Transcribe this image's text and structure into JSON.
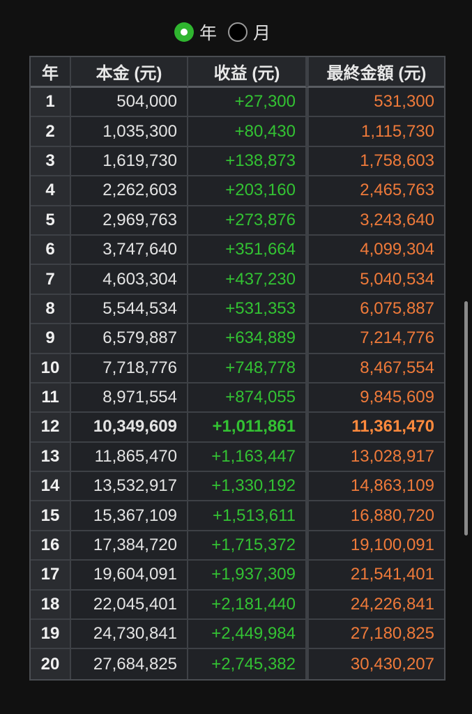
{
  "toggle": {
    "options": [
      {
        "label": "年",
        "checked": true
      },
      {
        "label": "月",
        "checked": false
      }
    ]
  },
  "table": {
    "headers": [
      "年",
      "本金 (元)",
      "收益 (元)",
      "最終金額 (元)"
    ],
    "highlight_year": "12",
    "rows": [
      {
        "year": "1",
        "principal": "504,000",
        "interest": "+27,300",
        "final": "531,300"
      },
      {
        "year": "2",
        "principal": "1,035,300",
        "interest": "+80,430",
        "final": "1,115,730"
      },
      {
        "year": "3",
        "principal": "1,619,730",
        "interest": "+138,873",
        "final": "1,758,603"
      },
      {
        "year": "4",
        "principal": "2,262,603",
        "interest": "+203,160",
        "final": "2,465,763"
      },
      {
        "year": "5",
        "principal": "2,969,763",
        "interest": "+273,876",
        "final": "3,243,640"
      },
      {
        "year": "6",
        "principal": "3,747,640",
        "interest": "+351,664",
        "final": "4,099,304"
      },
      {
        "year": "7",
        "principal": "4,603,304",
        "interest": "+437,230",
        "final": "5,040,534"
      },
      {
        "year": "8",
        "principal": "5,544,534",
        "interest": "+531,353",
        "final": "6,075,887"
      },
      {
        "year": "9",
        "principal": "6,579,887",
        "interest": "+634,889",
        "final": "7,214,776"
      },
      {
        "year": "10",
        "principal": "7,718,776",
        "interest": "+748,778",
        "final": "8,467,554"
      },
      {
        "year": "11",
        "principal": "8,971,554",
        "interest": "+874,055",
        "final": "9,845,609"
      },
      {
        "year": "12",
        "principal": "10,349,609",
        "interest": "+1,011,861",
        "final": "11,361,470"
      },
      {
        "year": "13",
        "principal": "11,865,470",
        "interest": "+1,163,447",
        "final": "13,028,917"
      },
      {
        "year": "14",
        "principal": "13,532,917",
        "interest": "+1,330,192",
        "final": "14,863,109"
      },
      {
        "year": "15",
        "principal": "15,367,109",
        "interest": "+1,513,611",
        "final": "16,880,720"
      },
      {
        "year": "16",
        "principal": "17,384,720",
        "interest": "+1,715,372",
        "final": "19,100,091"
      },
      {
        "year": "17",
        "principal": "19,604,091",
        "interest": "+1,937,309",
        "final": "21,541,401"
      },
      {
        "year": "18",
        "principal": "22,045,401",
        "interest": "+2,181,440",
        "final": "24,226,841"
      },
      {
        "year": "19",
        "principal": "24,730,841",
        "interest": "+2,449,984",
        "final": "27,180,825"
      },
      {
        "year": "20",
        "principal": "27,684,825",
        "interest": "+2,745,382",
        "final": "30,430,207"
      }
    ]
  },
  "colors": {
    "background": "#111111",
    "radio_checked": "#2fb52f",
    "interest_text": "#33c233",
    "final_text": "#ef7a3a"
  }
}
